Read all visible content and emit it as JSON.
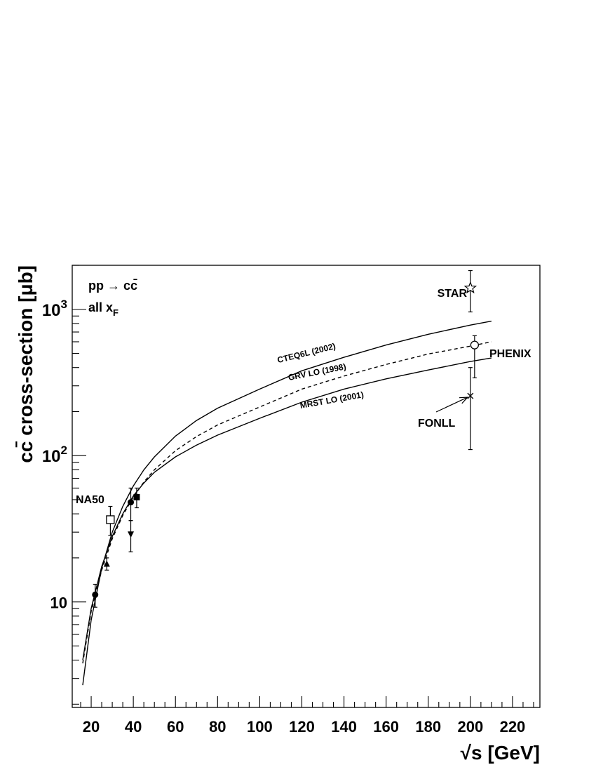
{
  "chart_data": {
    "type": "scatter",
    "title": "",
    "xlabel": "√s [GeV]",
    "ylabel": "cc̄ cross-section [μb]",
    "yscale": "log",
    "xlim": [
      11,
      233
    ],
    "ylim": [
      1.9,
      2000
    ],
    "grid": false,
    "x_ticks": [
      20,
      40,
      60,
      80,
      100,
      120,
      140,
      160,
      180,
      200,
      220
    ],
    "x_tick_labels": [
      "20",
      "40",
      "60",
      "80",
      "100",
      "120",
      "140",
      "160",
      "180",
      "200",
      "220"
    ],
    "y_ticks": [
      10,
      100,
      1000
    ],
    "y_tick_labels": [
      "10",
      "10²",
      "10³"
    ],
    "legend": {
      "placement": "top-left",
      "lines": [
        "pp → cc̄",
        "all x_F"
      ]
    },
    "series": [
      {
        "name": "CTEQ6L (2002)",
        "style": "solid",
        "x": [
          16,
          20,
          25,
          30,
          35,
          40,
          45,
          50,
          60,
          70,
          80,
          100,
          120,
          140,
          160,
          180,
          200,
          210
        ],
        "y": [
          2.7,
          7.5,
          17,
          30,
          45,
          62,
          80,
          98,
          136,
          174,
          211,
          285,
          380,
          470,
          570,
          675,
          780,
          830
        ]
      },
      {
        "name": "GRV LO (1998)",
        "style": "dashed",
        "x": [
          16,
          20,
          25,
          30,
          35,
          40,
          45,
          50,
          60,
          70,
          80,
          100,
          120,
          140,
          160,
          180,
          200,
          210
        ],
        "y": [
          3.8,
          8.6,
          16.5,
          27,
          39,
          52,
          66,
          80,
          108,
          135,
          162,
          215,
          285,
          350,
          420,
          495,
          560,
          600
        ]
      },
      {
        "name": "MRST LO (2001)",
        "style": "solid",
        "x": [
          16,
          20,
          25,
          30,
          35,
          40,
          45,
          50,
          60,
          70,
          80,
          100,
          120,
          140,
          160,
          180,
          200,
          210
        ],
        "y": [
          4.0,
          9.0,
          17.5,
          28,
          40,
          53,
          65,
          77,
          98,
          118,
          138,
          180,
          232,
          285,
          335,
          385,
          440,
          465
        ]
      }
    ],
    "points": [
      {
        "marker": "circle-filled",
        "x": 21.9,
        "y": 11.2,
        "err_low": 9.2,
        "err_high": 13.2
      },
      {
        "marker": "triangle-up-filled",
        "x": 27.4,
        "y": 18.2,
        "err_low": 16.5,
        "err_high": 20
      },
      {
        "marker": "square-open",
        "label": "NA50",
        "x": 29.1,
        "y": 36.5,
        "err_low": 28.5,
        "err_high": 45
      },
      {
        "marker": "triangle-down-filled",
        "x": 38.8,
        "y": 29,
        "err_low": 22,
        "err_high": 36
      },
      {
        "marker": "circle-filled",
        "x": 38.8,
        "y": 48,
        "err_low": 36,
        "err_high": 60
      },
      {
        "marker": "square-filled",
        "x": 41.6,
        "y": 52,
        "err_low": 44,
        "err_high": 60
      },
      {
        "marker": "star-open",
        "label": "STAR",
        "x": 200,
        "y": 1400,
        "err_low": 960,
        "err_high": 1840
      },
      {
        "marker": "circle-open",
        "label": "PHENIX",
        "x": 202,
        "y": 570,
        "err_low": 340,
        "err_high": 660
      },
      {
        "marker": "x",
        "label": "FONLL",
        "x": 200,
        "y": 256,
        "err_low": 110,
        "err_high": 400
      }
    ]
  }
}
